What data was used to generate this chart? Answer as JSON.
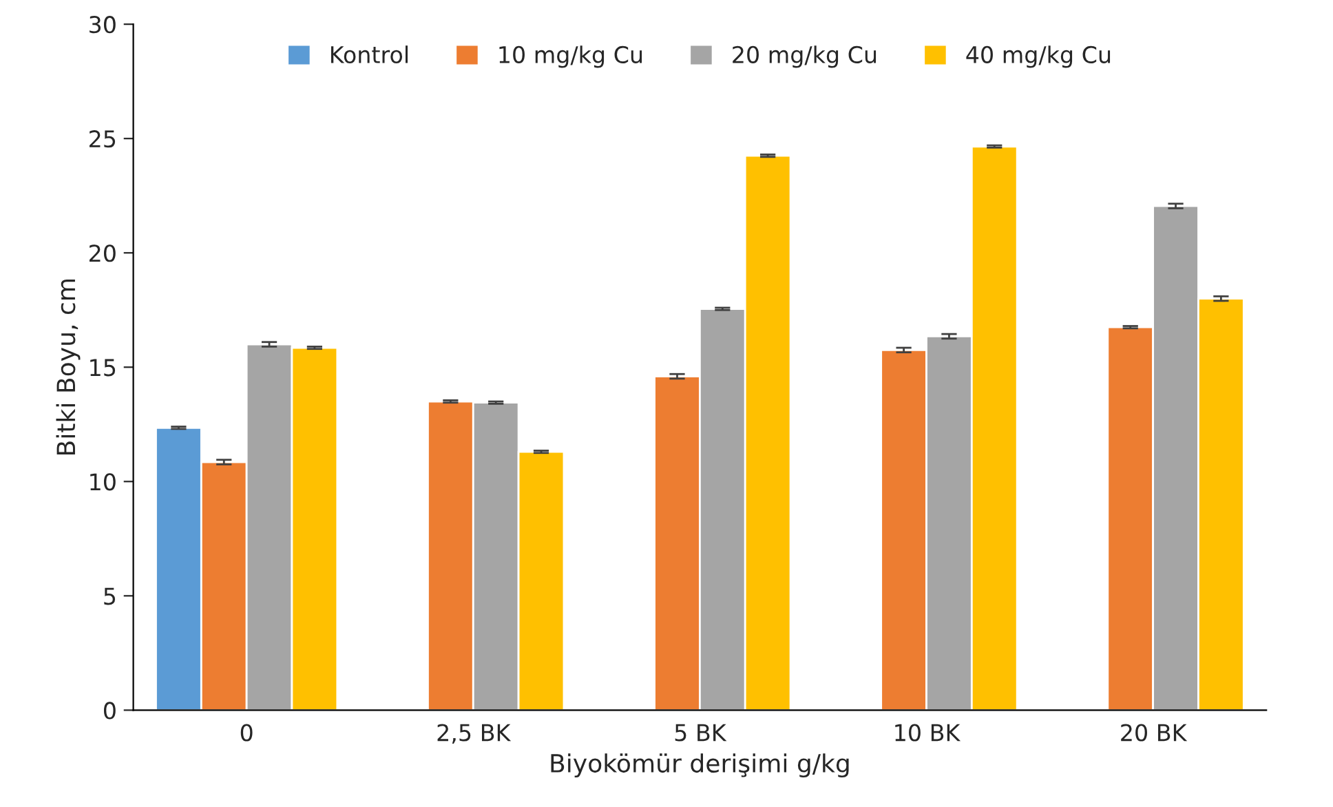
{
  "chart_data": {
    "type": "bar",
    "xlabel": "Biyokömür derişimi g/kg",
    "ylabel": "Bitki Boyu, cm",
    "categories": [
      "0",
      "2,5 BK",
      "5 BK",
      "10 BK",
      "20 BK"
    ],
    "series": [
      {
        "name": "Kontrol",
        "color": "#5b9bd5",
        "values": [
          12.35,
          null,
          null,
          null,
          null
        ],
        "errors": [
          0.05,
          null,
          null,
          null,
          null
        ]
      },
      {
        "name": "10 mg/kg Cu",
        "color": "#ed7d31",
        "values": [
          10.85,
          13.5,
          14.6,
          15.75,
          16.75
        ],
        "errors": [
          0.1,
          0.05,
          0.1,
          0.1,
          0.05
        ]
      },
      {
        "name": "20 mg/kg Cu",
        "color": "#a5a5a5",
        "values": [
          16.0,
          13.45,
          17.55,
          16.35,
          22.05
        ],
        "errors": [
          0.1,
          0.05,
          0.05,
          0.1,
          0.1
        ]
      },
      {
        "name": "40 mg/kg Cu",
        "color": "#ffc000",
        "values": [
          15.85,
          11.3,
          24.25,
          24.65,
          18.0
        ],
        "errors": [
          0.05,
          0.05,
          0.05,
          0.05,
          0.1
        ]
      }
    ],
    "ylim": [
      0,
      30
    ],
    "yticks": [
      0,
      5,
      10,
      15,
      20,
      25,
      30
    ],
    "grid": false,
    "legend": "top"
  }
}
